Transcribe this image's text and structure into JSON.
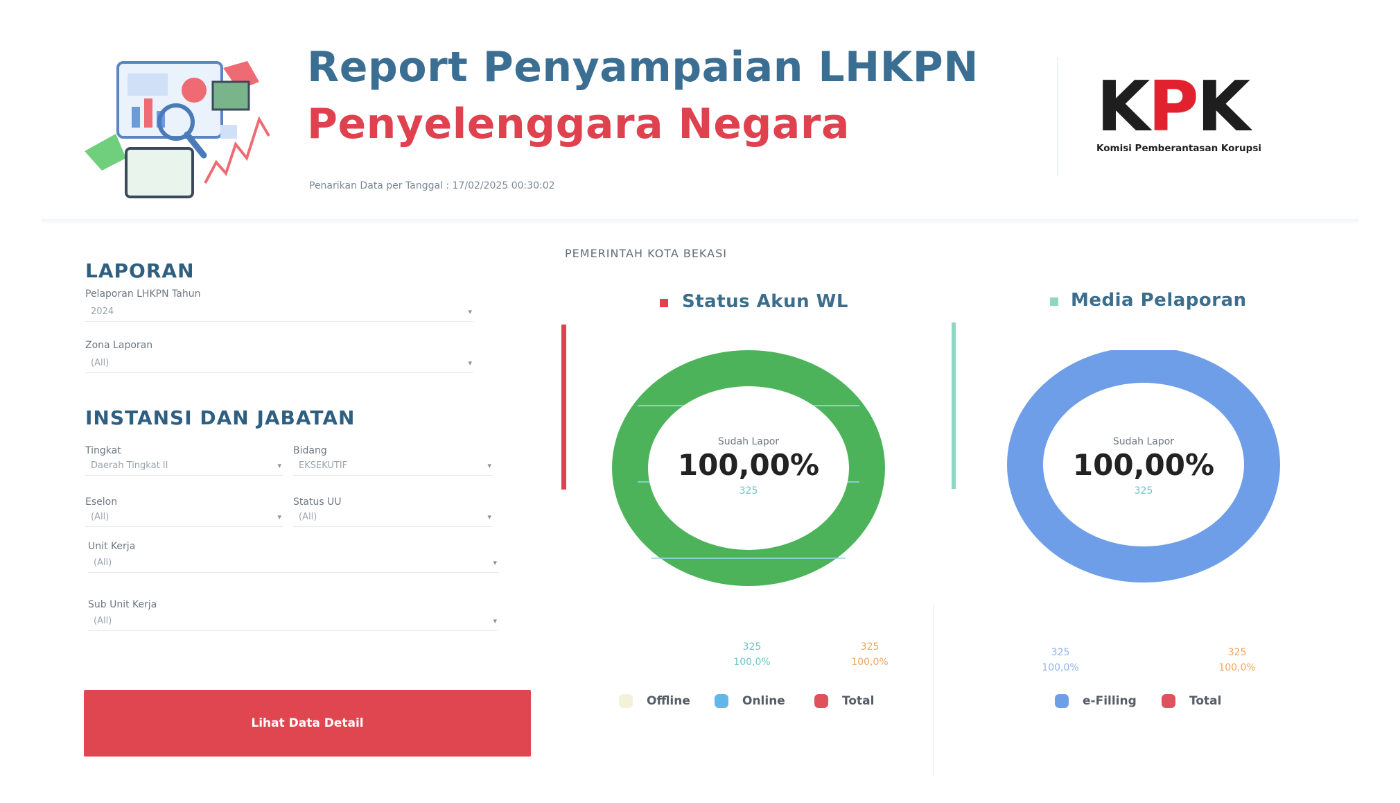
{
  "header": {
    "title": "Report Penyampaian LHKPN",
    "subtitle": "Penyelenggara Negara",
    "timestamp": "Penarikan Data per Tanggal : 17/02/2025 00:30:02",
    "logo": {
      "text": "KPK",
      "caption": "Komisi Pemberantasan Korupsi"
    }
  },
  "filters": {
    "laporan": {
      "heading": "LAPORAN",
      "year": {
        "label": "Pelaporan LHKPN Tahun",
        "value": "2024"
      },
      "zone": {
        "label": "Zona Laporan",
        "value": "(All)"
      }
    },
    "instansi": {
      "heading": "INSTANSI DAN JABATAN",
      "tingkat": {
        "label": "Tingkat",
        "value": "Daerah Tingkat II"
      },
      "bidang": {
        "label": "Bidang",
        "value": "EKSEKUTIF"
      },
      "eselon": {
        "label": "Eselon",
        "value": "(All)"
      },
      "status_uu": {
        "label": "Status UU",
        "value": "(All)"
      },
      "unit_kerja": {
        "label": "Unit Kerja",
        "value": "(All)"
      },
      "sub_unit_kerja": {
        "label": "Sub Unit Kerja",
        "value": "(All)"
      }
    },
    "detail_button": "Lihat Data Detail"
  },
  "agency": "PEMERINTAH KOTA BEKASI",
  "status_panel": {
    "title": "Status Akun WL",
    "center_caption": "Sudah Lapor",
    "center_value": "100,00%",
    "center_count": "325",
    "stats": [
      {
        "count": "325",
        "percent": "100,0%"
      },
      {
        "count": "325",
        "percent": "100,0%"
      }
    ],
    "legend": [
      "Offline",
      "Online",
      "Total"
    ]
  },
  "media_panel": {
    "title": "Media Pelaporan",
    "center_caption": "Sudah Lapor",
    "center_value": "100,00%",
    "center_count": "325",
    "stats": [
      {
        "count": "325",
        "percent": "100,0%"
      },
      {
        "count": "325",
        "percent": "100,0%"
      }
    ],
    "legend": [
      "e-Filling",
      "Total"
    ]
  },
  "colors": {
    "title_blue": "#3a6e92",
    "accent_red": "#e0414f",
    "donut_green": "#4cb35a",
    "donut_blue": "#6e9ee8",
    "teal": "#6bc4c4",
    "orange": "#f0a45a",
    "offline": "#f3f1d9",
    "online": "#62b6ea",
    "total": "#e0515c"
  }
}
